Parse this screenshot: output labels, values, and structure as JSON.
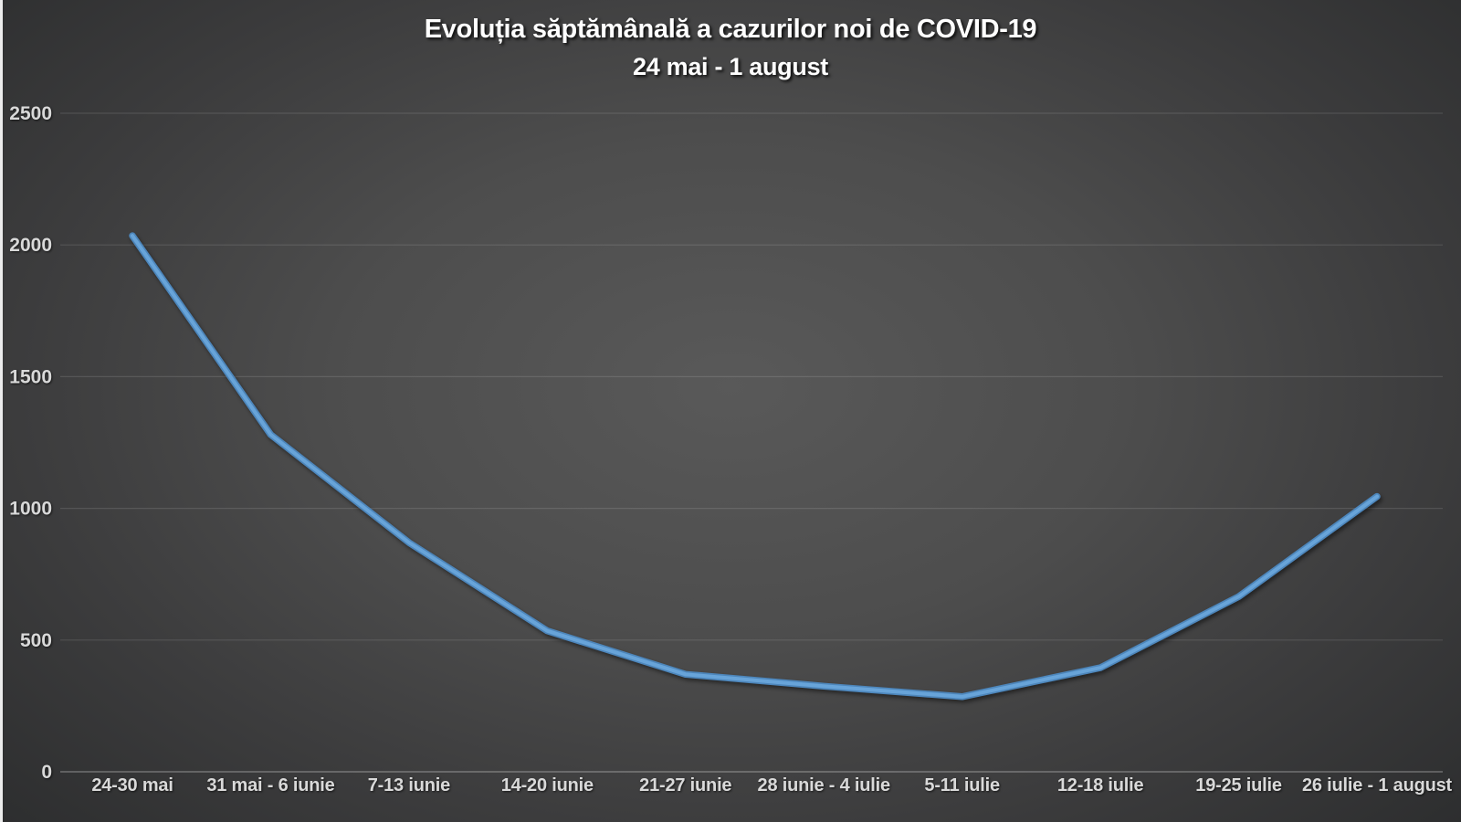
{
  "chart_data": {
    "type": "line",
    "title": "Evoluția săptămânală a cazurilor noi de COVID-19",
    "subtitle": "24 mai - 1 august",
    "categories": [
      "24-30 mai",
      "31 mai - 6 iunie",
      "7-13 iunie",
      "14-20 iunie",
      "21-27 iunie",
      "28 iunie - 4 iulie",
      "5-11 iulie",
      "12-18 iulie",
      "19-25 iulie",
      "26 iulie - 1 august"
    ],
    "values": [
      2035,
      1280,
      870,
      535,
      370,
      325,
      285,
      395,
      665,
      1045
    ],
    "xlabel": "",
    "ylabel": "",
    "ylim": [
      0,
      2500
    ],
    "yticks": [
      0,
      500,
      1000,
      1500,
      2000,
      2500
    ],
    "grid": "horizontal",
    "legend": "none"
  },
  "colors": {
    "line_edge": "#4d86bb",
    "line_core": "#68a4d9",
    "background_center": "#595959",
    "background_edge": "#2b2c2d",
    "gridline": "rgba(255,255,255,0.12)",
    "axis_line": "rgba(255,255,255,0.30)",
    "tick_label": "#d9d9d9",
    "title": "#ffffff"
  }
}
